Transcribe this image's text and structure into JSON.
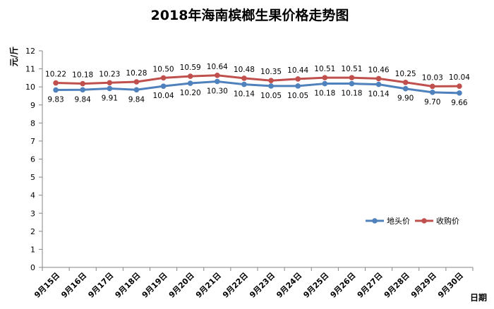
{
  "chart_data": {
    "type": "line",
    "title": "2018年海南槟榔生果价格走势图",
    "xlabel": "日期",
    "ylabel": "元/斤",
    "ylim": [
      0,
      12
    ],
    "yticks": [
      0,
      1,
      2,
      3,
      4,
      5,
      6,
      7,
      8,
      9,
      10,
      11,
      12
    ],
    "grid": false,
    "legend_position": "right",
    "categories": [
      "9月15日",
      "9月16日",
      "9月17日",
      "9月18日",
      "9月19日",
      "9月20日",
      "9月21日",
      "9月22日",
      "9月23日",
      "9月24日",
      "9月25日",
      "9月26日",
      "9月27日",
      "9月28日",
      "9月29日",
      "9月30日"
    ],
    "series": [
      {
        "name": "地头价",
        "color": "#4f81bd",
        "label_position": "below",
        "values": [
          9.83,
          9.84,
          9.91,
          9.84,
          10.04,
          10.2,
          10.3,
          10.14,
          10.05,
          10.05,
          10.18,
          10.18,
          10.14,
          9.9,
          9.7,
          9.66
        ],
        "labels": [
          "9.83",
          "9.84",
          "9.91",
          "9.84",
          "10.04",
          "10.20",
          "10.30",
          "10.14",
          "10.05",
          "10.05",
          "10.18",
          "10.18",
          "10.14",
          "9.90",
          "9.70",
          "9.66"
        ]
      },
      {
        "name": "收购价",
        "color": "#c0504d",
        "label_position": "above",
        "values": [
          10.22,
          10.18,
          10.23,
          10.28,
          10.5,
          10.59,
          10.64,
          10.48,
          10.35,
          10.44,
          10.51,
          10.51,
          10.46,
          10.25,
          10.03,
          10.04
        ],
        "labels": [
          "10.22",
          "10.18",
          "10.23",
          "10.28",
          "10.50",
          "10.59",
          "10.64",
          "10.48",
          "10.35",
          "10.44",
          "10.51",
          "10.51",
          "10.46",
          "10.25",
          "10.03",
          "10.04"
        ]
      }
    ]
  }
}
